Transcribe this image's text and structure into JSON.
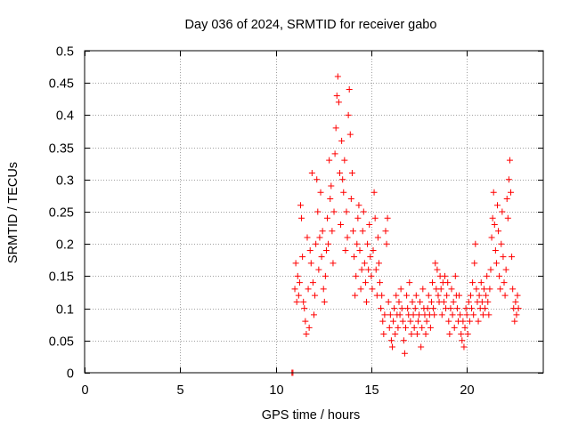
{
  "chart_data": {
    "type": "scatter",
    "title": "Day 036 of 2024, SRMTID for receiver gabo",
    "xlabel": "GPS time / hours",
    "ylabel": "SRMTID / TECUs",
    "xlim": [
      0,
      24
    ],
    "ylim": [
      0,
      0.5
    ],
    "xticks": [
      0,
      5,
      10,
      15,
      20
    ],
    "xtick_labels": [
      "0",
      "5",
      "10",
      "15",
      "20"
    ],
    "yticks": [
      0,
      0.05,
      0.1,
      0.15,
      0.2,
      0.25,
      0.3,
      0.35,
      0.4,
      0.45,
      0.5
    ],
    "ytick_labels": [
      "0",
      "0.05",
      "0.1",
      "0.15",
      "0.2",
      "0.25",
      "0.3",
      "0.35",
      "0.4",
      "0.45",
      "0.5"
    ],
    "grid": true,
    "marker": "+",
    "color": "#ff0000",
    "series": [
      {
        "name": "SRMTID",
        "points": [
          [
            10.85,
            0.0
          ],
          [
            10.9,
            0.0
          ],
          [
            11.0,
            0.13
          ],
          [
            11.05,
            0.17
          ],
          [
            11.1,
            0.11
          ],
          [
            11.15,
            0.15
          ],
          [
            11.2,
            0.12
          ],
          [
            11.25,
            0.14
          ],
          [
            11.3,
            0.26
          ],
          [
            11.35,
            0.24
          ],
          [
            11.4,
            0.18
          ],
          [
            11.45,
            0.11
          ],
          [
            11.5,
            0.1
          ],
          [
            11.55,
            0.08
          ],
          [
            11.6,
            0.06
          ],
          [
            11.65,
            0.21
          ],
          [
            11.7,
            0.13
          ],
          [
            11.75,
            0.07
          ],
          [
            11.8,
            0.19
          ],
          [
            11.85,
            0.17
          ],
          [
            11.9,
            0.31
          ],
          [
            11.95,
            0.14
          ],
          [
            12.0,
            0.09
          ],
          [
            12.05,
            0.12
          ],
          [
            12.1,
            0.2
          ],
          [
            12.15,
            0.3
          ],
          [
            12.2,
            0.25
          ],
          [
            12.25,
            0.16
          ],
          [
            12.3,
            0.21
          ],
          [
            12.35,
            0.28
          ],
          [
            12.4,
            0.18
          ],
          [
            12.45,
            0.22
          ],
          [
            12.5,
            0.13
          ],
          [
            12.55,
            0.11
          ],
          [
            12.6,
            0.15
          ],
          [
            12.65,
            0.19
          ],
          [
            12.7,
            0.24
          ],
          [
            12.75,
            0.2
          ],
          [
            12.8,
            0.33
          ],
          [
            12.85,
            0.27
          ],
          [
            12.9,
            0.29
          ],
          [
            12.95,
            0.22
          ],
          [
            13.0,
            0.17
          ],
          [
            13.05,
            0.25
          ],
          [
            13.1,
            0.34
          ],
          [
            13.15,
            0.38
          ],
          [
            13.2,
            0.43
          ],
          [
            13.25,
            0.46
          ],
          [
            13.3,
            0.42
          ],
          [
            13.35,
            0.31
          ],
          [
            13.4,
            0.23
          ],
          [
            13.45,
            0.36
          ],
          [
            13.5,
            0.3
          ],
          [
            13.55,
            0.28
          ],
          [
            13.6,
            0.33
          ],
          [
            13.65,
            0.19
          ],
          [
            13.7,
            0.25
          ],
          [
            13.75,
            0.21
          ],
          [
            13.8,
            0.4
          ],
          [
            13.85,
            0.44
          ],
          [
            13.9,
            0.37
          ],
          [
            13.95,
            0.27
          ],
          [
            14.0,
            0.31
          ],
          [
            14.05,
            0.22
          ],
          [
            14.1,
            0.18
          ],
          [
            14.15,
            0.12
          ],
          [
            14.2,
            0.15
          ],
          [
            14.25,
            0.2
          ],
          [
            14.3,
            0.24
          ],
          [
            14.35,
            0.26
          ],
          [
            14.4,
            0.19
          ],
          [
            14.45,
            0.13
          ],
          [
            14.5,
            0.16
          ],
          [
            14.55,
            0.22
          ],
          [
            14.6,
            0.25
          ],
          [
            14.65,
            0.17
          ],
          [
            14.7,
            0.14
          ],
          [
            14.75,
            0.11
          ],
          [
            14.8,
            0.2
          ],
          [
            14.85,
            0.16
          ],
          [
            14.9,
            0.23
          ],
          [
            14.95,
            0.18
          ],
          [
            15.0,
            0.15
          ],
          [
            15.05,
            0.13
          ],
          [
            15.1,
            0.19
          ],
          [
            15.15,
            0.28
          ],
          [
            15.2,
            0.24
          ],
          [
            15.25,
            0.16
          ],
          [
            15.3,
            0.12
          ],
          [
            15.35,
            0.21
          ],
          [
            15.4,
            0.17
          ],
          [
            15.45,
            0.14
          ],
          [
            15.5,
            0.1
          ],
          [
            15.55,
            0.12
          ],
          [
            15.6,
            0.08
          ],
          [
            15.65,
            0.06
          ],
          [
            15.7,
            0.09
          ],
          [
            15.75,
            0.22
          ],
          [
            15.8,
            0.2
          ],
          [
            15.85,
            0.24
          ],
          [
            15.9,
            0.11
          ],
          [
            15.95,
            0.07
          ],
          [
            16.0,
            0.09
          ],
          [
            16.05,
            0.05
          ],
          [
            16.1,
            0.04
          ],
          [
            16.15,
            0.08
          ],
          [
            16.2,
            0.1
          ],
          [
            16.25,
            0.06
          ],
          [
            16.3,
            0.12
          ],
          [
            16.35,
            0.09
          ],
          [
            16.4,
            0.07
          ],
          [
            16.45,
            0.11
          ],
          [
            16.5,
            0.09
          ],
          [
            16.55,
            0.13
          ],
          [
            16.6,
            0.1
          ],
          [
            16.65,
            0.08
          ],
          [
            16.7,
            0.05
          ],
          [
            16.75,
            0.03
          ],
          [
            16.8,
            0.07
          ],
          [
            16.85,
            0.12
          ],
          [
            16.9,
            0.1
          ],
          [
            16.95,
            0.09
          ],
          [
            17.0,
            0.14
          ],
          [
            17.05,
            0.08
          ],
          [
            17.1,
            0.06
          ],
          [
            17.15,
            0.11
          ],
          [
            17.2,
            0.09
          ],
          [
            17.25,
            0.07
          ],
          [
            17.3,
            0.1
          ],
          [
            17.35,
            0.12
          ],
          [
            17.4,
            0.06
          ],
          [
            17.45,
            0.08
          ],
          [
            17.5,
            0.09
          ],
          [
            17.55,
            0.11
          ],
          [
            17.6,
            0.04
          ],
          [
            17.65,
            0.07
          ],
          [
            17.7,
            0.13
          ],
          [
            17.75,
            0.1
          ],
          [
            17.8,
            0.09
          ],
          [
            17.85,
            0.06
          ],
          [
            17.9,
            0.08
          ],
          [
            17.95,
            0.1
          ],
          [
            18.0,
            0.12
          ],
          [
            18.05,
            0.09
          ],
          [
            18.1,
            0.07
          ],
          [
            18.15,
            0.11
          ],
          [
            18.2,
            0.14
          ],
          [
            18.25,
            0.1
          ],
          [
            18.3,
            0.09
          ],
          [
            18.35,
            0.17
          ],
          [
            18.4,
            0.13
          ],
          [
            18.45,
            0.16
          ],
          [
            18.5,
            0.12
          ],
          [
            18.55,
            0.11
          ],
          [
            18.6,
            0.15
          ],
          [
            18.65,
            0.13
          ],
          [
            18.7,
            0.09
          ],
          [
            18.75,
            0.14
          ],
          [
            18.8,
            0.11
          ],
          [
            18.85,
            0.15
          ],
          [
            18.9,
            0.1
          ],
          [
            18.95,
            0.12
          ],
          [
            19.0,
            0.14
          ],
          [
            19.05,
            0.08
          ],
          [
            19.1,
            0.06
          ],
          [
            19.15,
            0.1
          ],
          [
            19.2,
            0.13
          ],
          [
            19.25,
            0.09
          ],
          [
            19.3,
            0.11
          ],
          [
            19.35,
            0.07
          ],
          [
            19.4,
            0.15
          ],
          [
            19.45,
            0.12
          ],
          [
            19.5,
            0.1
          ],
          [
            19.55,
            0.08
          ],
          [
            19.6,
            0.12
          ],
          [
            19.65,
            0.09
          ],
          [
            19.7,
            0.06
          ],
          [
            19.75,
            0.05
          ],
          [
            19.8,
            0.08
          ],
          [
            19.85,
            0.04
          ],
          [
            19.9,
            0.07
          ],
          [
            19.95,
            0.1
          ],
          [
            20.0,
            0.09
          ],
          [
            20.05,
            0.06
          ],
          [
            20.1,
            0.11
          ],
          [
            20.15,
            0.08
          ],
          [
            20.2,
            0.12
          ],
          [
            20.25,
            0.1
          ],
          [
            20.3,
            0.14
          ],
          [
            20.35,
            0.09
          ],
          [
            20.4,
            0.17
          ],
          [
            20.45,
            0.2
          ],
          [
            20.5,
            0.13
          ],
          [
            20.55,
            0.11
          ],
          [
            20.6,
            0.08
          ],
          [
            20.65,
            0.12
          ],
          [
            20.7,
            0.1
          ],
          [
            20.75,
            0.14
          ],
          [
            20.8,
            0.11
          ],
          [
            20.85,
            0.09
          ],
          [
            20.9,
            0.13
          ],
          [
            20.95,
            0.1
          ],
          [
            21.0,
            0.12
          ],
          [
            21.05,
            0.15
          ],
          [
            21.1,
            0.11
          ],
          [
            21.15,
            0.09
          ],
          [
            21.2,
            0.13
          ],
          [
            21.25,
            0.16
          ],
          [
            21.3,
            0.21
          ],
          [
            21.35,
            0.24
          ],
          [
            21.4,
            0.28
          ],
          [
            21.45,
            0.23
          ],
          [
            21.5,
            0.19
          ],
          [
            21.55,
            0.17
          ],
          [
            21.6,
            0.26
          ],
          [
            21.65,
            0.22
          ],
          [
            21.7,
            0.15
          ],
          [
            21.75,
            0.13
          ],
          [
            21.8,
            0.2
          ],
          [
            21.85,
            0.25
          ],
          [
            21.9,
            0.18
          ],
          [
            21.95,
            0.14
          ],
          [
            22.0,
            0.12
          ],
          [
            22.05,
            0.16
          ],
          [
            22.1,
            0.27
          ],
          [
            22.15,
            0.24
          ],
          [
            22.2,
            0.3
          ],
          [
            22.25,
            0.33
          ],
          [
            22.3,
            0.28
          ],
          [
            22.35,
            0.18
          ],
          [
            22.4,
            0.13
          ],
          [
            22.45,
            0.1
          ],
          [
            22.5,
            0.08
          ],
          [
            22.55,
            0.11
          ],
          [
            22.6,
            0.09
          ],
          [
            22.65,
            0.12
          ],
          [
            22.7,
            0.1
          ]
        ]
      }
    ]
  }
}
